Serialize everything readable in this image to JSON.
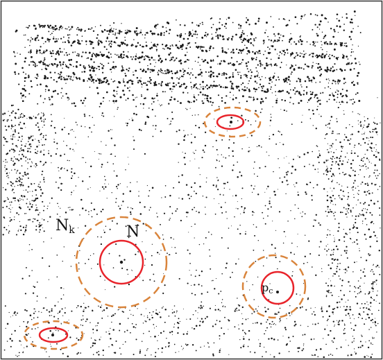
{
  "labels": {
    "outer_neighborhood": "N",
    "outer_neighborhood_sub": "k",
    "inner_neighborhood": "N",
    "point_label": "p",
    "point_label_sub": "c"
  },
  "colors": {
    "background": "#ffffff",
    "frame": "#333333",
    "points": "#1a1a1a",
    "inner_circle": "#e8232a",
    "outer_circle": "#d9843b"
  }
}
